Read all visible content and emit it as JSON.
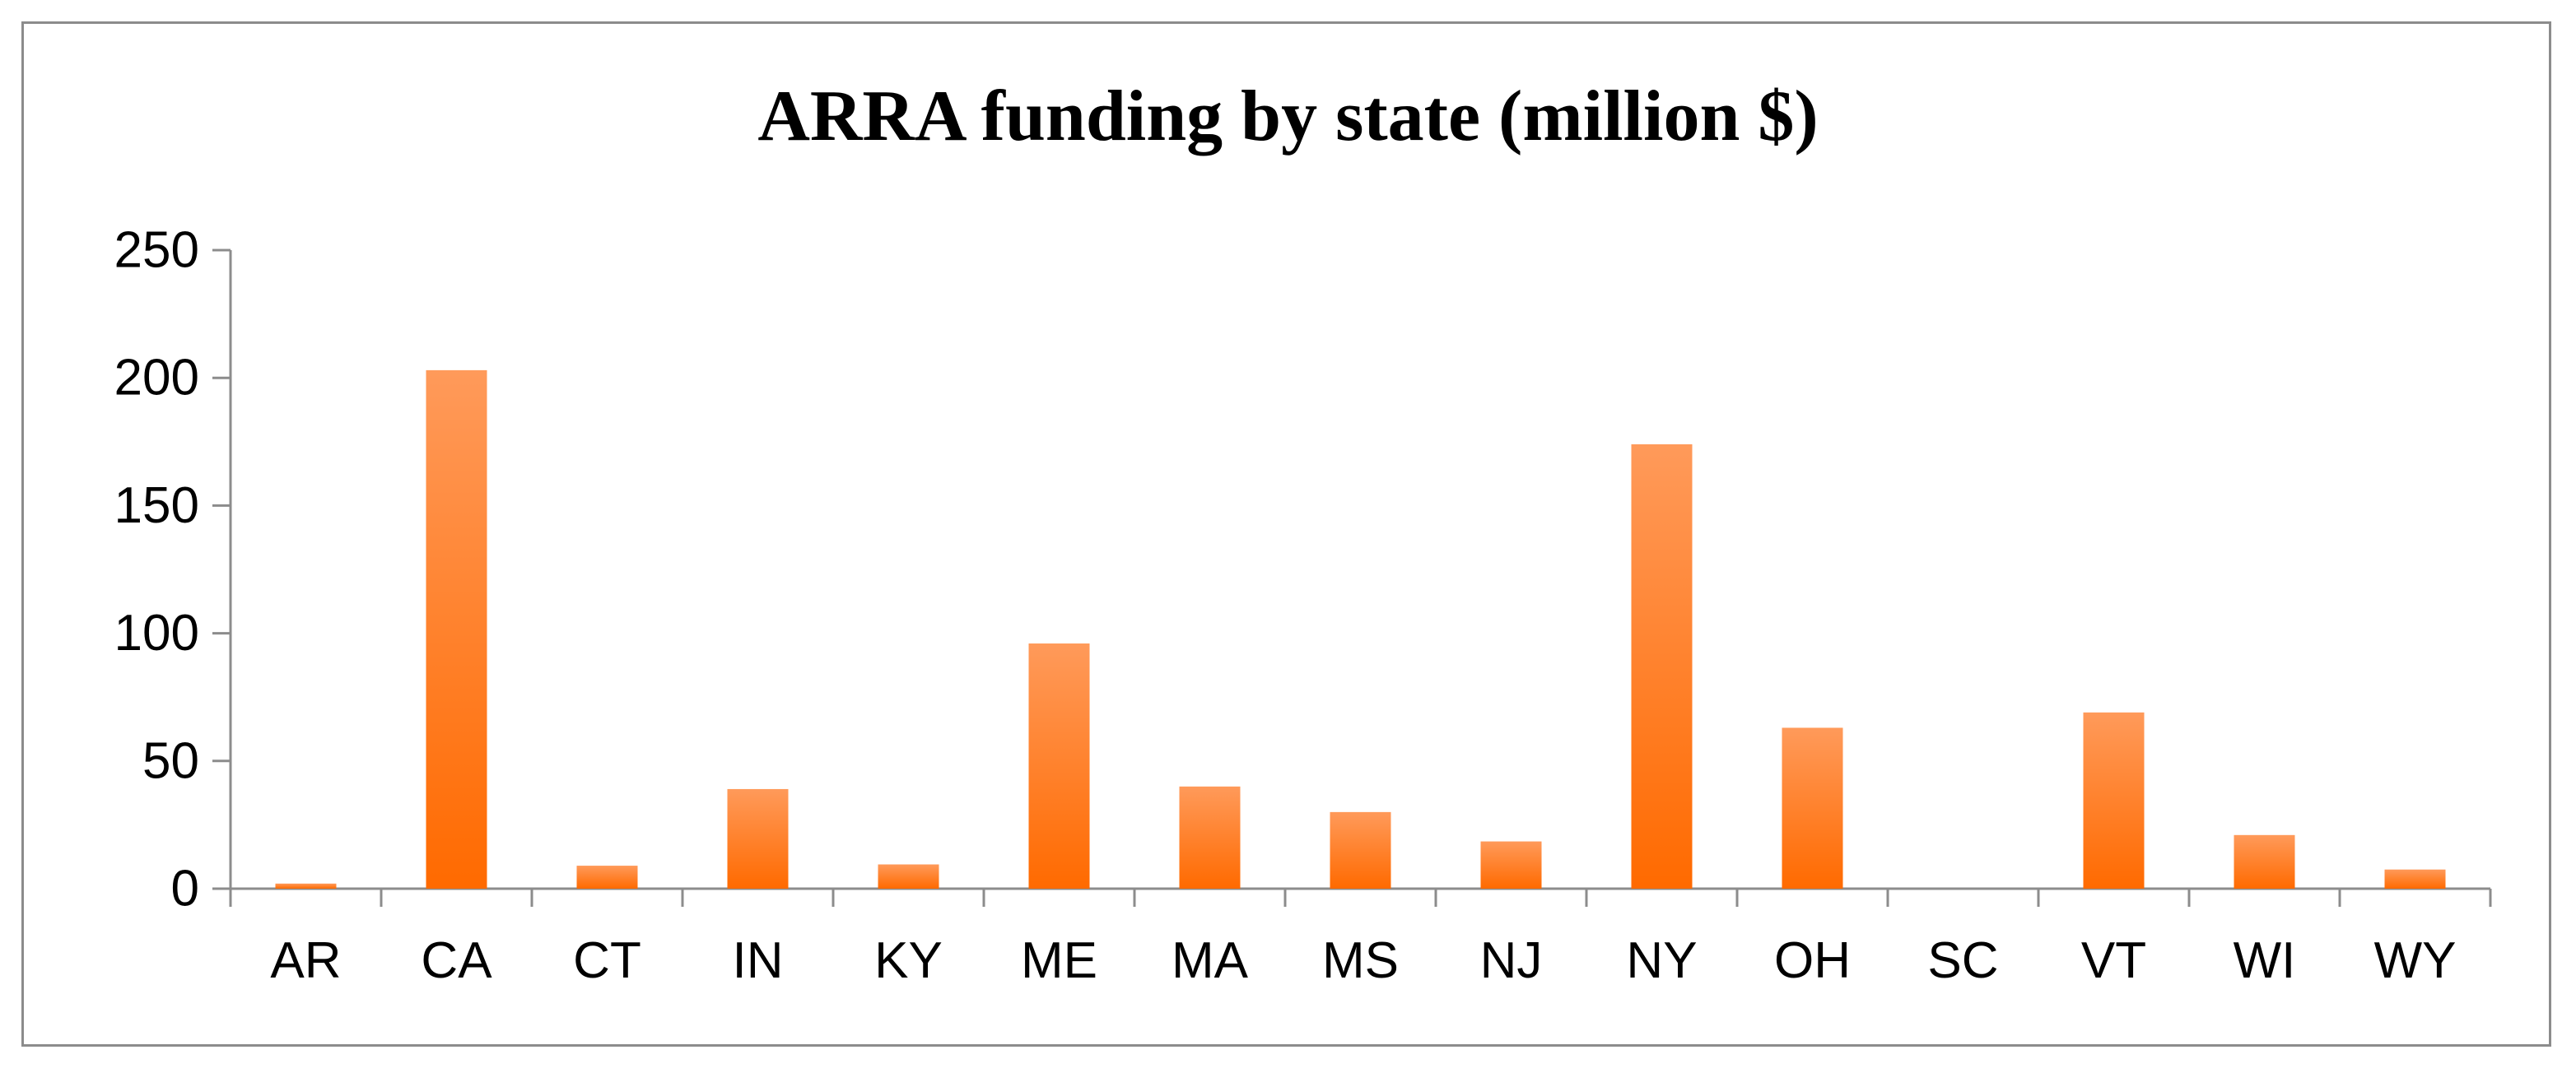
{
  "chart_data": {
    "type": "bar",
    "title": "ARRA funding by state (million $)",
    "xlabel": "",
    "ylabel": "",
    "categories": [
      "AR",
      "CA",
      "CT",
      "IN",
      "KY",
      "ME",
      "MA",
      "MS",
      "NJ",
      "NY",
      "OH",
      "SC",
      "VT",
      "WI",
      "WY"
    ],
    "values": [
      2,
      203,
      9,
      39,
      9.5,
      96,
      40,
      30,
      18.5,
      174,
      63,
      0,
      69,
      21,
      7.5
    ],
    "ylim": [
      0,
      250
    ],
    "yticks": [
      0,
      50,
      100,
      150,
      200,
      250
    ],
    "grid": false,
    "legend": "none",
    "bar_color_top": "#ff9a5a",
    "bar_color_bottom": "#ff6a00",
    "axis_color": "#8c8c8c"
  }
}
